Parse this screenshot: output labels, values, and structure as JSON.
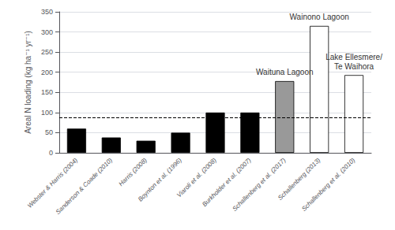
{
  "chart_data": {
    "type": "bar",
    "categories": [
      "Webster & Harris (2004)",
      "Sanderson & Coade (2010)",
      "Harris (2008)",
      "Boynton et al. (1996)",
      "Viaroli et al. (2008)",
      "Burkholder et al. (2007)",
      "Schallenberg et al. (2017)",
      "Schallenberg (2013)",
      "Schallenberg et al. (2010)"
    ],
    "values": [
      60,
      38,
      30,
      50,
      100,
      100,
      178,
      315,
      193
    ],
    "colors": [
      "black",
      "black",
      "black",
      "black",
      "black",
      "black",
      "#999999",
      "white",
      "white"
    ],
    "ylabel": "Areal N loading (kg ha⁻¹ yr⁻¹)",
    "ylim": [
      0,
      350
    ],
    "yticks": [
      0,
      50,
      100,
      150,
      200,
      250,
      300,
      350
    ],
    "reference_line": 88,
    "annotations": [
      {
        "text": "Waituna Lagoon",
        "category": "Schallenberg et al. (2017)"
      },
      {
        "text": "Wainono Lagoon",
        "category": "Schallenberg (2013)"
      },
      {
        "text": "Lake Ellesmere/\nTe Waihora",
        "category": "Schallenberg et al. (2010)"
      }
    ],
    "grid": true
  }
}
